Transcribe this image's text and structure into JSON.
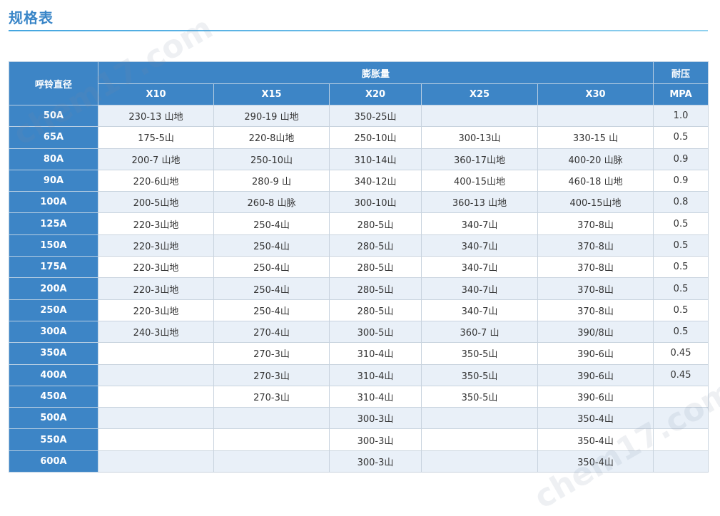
{
  "page": {
    "title": "规格表",
    "watermark": "chem17.com"
  },
  "table": {
    "headers": {
      "diameter": "呼铃直径",
      "expansion": "膨胀量",
      "pressure": "耐压",
      "x10": "X10",
      "x15": "X15",
      "x20": "X20",
      "x25": "X25",
      "x30": "X30",
      "pressure_unit": "MPA"
    },
    "rows": [
      {
        "size": "50A",
        "x10": "230-13 山地",
        "x15": "290-19 山地",
        "x20": "350-25山",
        "x25": "",
        "x30": "",
        "mpa": "1.0"
      },
      {
        "size": "65A",
        "x10": "175-5山",
        "x15": "220-8山地",
        "x20": "250-10山",
        "x25": "300-13山",
        "x30": "330-15 山",
        "mpa": "0.5"
      },
      {
        "size": "80A",
        "x10": "200-7 山地",
        "x15": "250-10山",
        "x20": "310-14山",
        "x25": "360-17山地",
        "x30": "400-20 山脉",
        "mpa": "0.9"
      },
      {
        "size": "90A",
        "x10": "220-6山地",
        "x15": "280-9 山",
        "x20": "340-12山",
        "x25": "400-15山地",
        "x30": "460-18 山地",
        "mpa": "0.9"
      },
      {
        "size": "100A",
        "x10": "200-5山地",
        "x15": "260-8 山脉",
        "x20": "300-10山",
        "x25": "360-13 山地",
        "x30": "400-15山地",
        "mpa": "0.8"
      },
      {
        "size": "125A",
        "x10": "220-3山地",
        "x15": "250-4山",
        "x20": "280-5山",
        "x25": "340-7山",
        "x30": "370-8山",
        "mpa": "0.5"
      },
      {
        "size": "150A",
        "x10": "220-3山地",
        "x15": "250-4山",
        "x20": "280-5山",
        "x25": "340-7山",
        "x30": "370-8山",
        "mpa": "0.5"
      },
      {
        "size": "175A",
        "x10": "220-3山地",
        "x15": "250-4山",
        "x20": "280-5山",
        "x25": "340-7山",
        "x30": "370-8山",
        "mpa": "0.5"
      },
      {
        "size": "200A",
        "x10": "220-3山地",
        "x15": "250-4山",
        "x20": "280-5山",
        "x25": "340-7山",
        "x30": "370-8山",
        "mpa": "0.5"
      },
      {
        "size": "250A",
        "x10": "220-3山地",
        "x15": "250-4山",
        "x20": "280-5山",
        "x25": "340-7山",
        "x30": "370-8山",
        "mpa": "0.5"
      },
      {
        "size": "300A",
        "x10": "240-3山地",
        "x15": "270-4山",
        "x20": "300-5山",
        "x25": "360-7 山",
        "x30": "390/8山",
        "mpa": "0.5"
      },
      {
        "size": "350A",
        "x10": "",
        "x15": "270-3山",
        "x20": "310-4山",
        "x25": "350-5山",
        "x30": "390-6山",
        "mpa": "0.45"
      },
      {
        "size": "400A",
        "x10": "",
        "x15": "270-3山",
        "x20": "310-4山",
        "x25": "350-5山",
        "x30": "390-6山",
        "mpa": "0.45"
      },
      {
        "size": "450A",
        "x10": "",
        "x15": "270-3山",
        "x20": "310-4山",
        "x25": "350-5山",
        "x30": "390-6山",
        "mpa": ""
      },
      {
        "size": "500A",
        "x10": "",
        "x15": "",
        "x20": "300-3山",
        "x25": "",
        "x30": "350-4山",
        "mpa": ""
      },
      {
        "size": "550A",
        "x10": "",
        "x15": "",
        "x20": "300-3山",
        "x25": "",
        "x30": "350-4山",
        "mpa": ""
      },
      {
        "size": "600A",
        "x10": "",
        "x15": "",
        "x20": "300-3山",
        "x25": "",
        "x30": "350-4山",
        "mpa": ""
      }
    ]
  }
}
